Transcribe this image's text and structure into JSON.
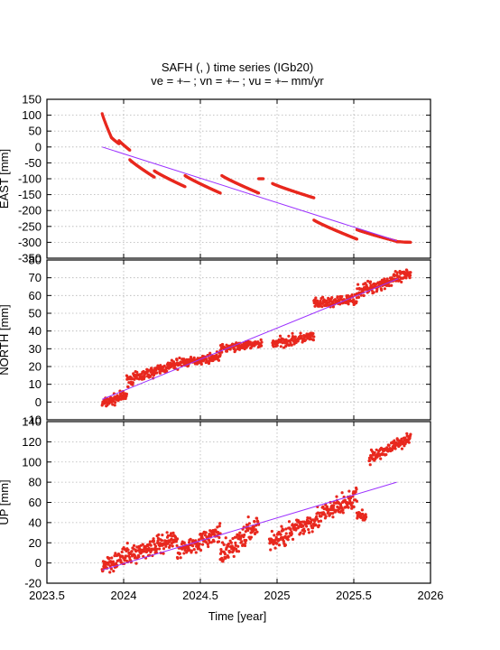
{
  "figure": {
    "title_line1": "SAFH (, ) time series (IGb20)",
    "title_line2": "ve =  +– ; vn =  +– ; vu =  +–  mm/yr"
  },
  "x_axis": {
    "label": "Time [year]",
    "range": [
      2023.5,
      2026
    ],
    "ticks": [
      2023.5,
      2024,
      2024.5,
      2025,
      2025.5,
      2026
    ],
    "tick_labels": [
      "2023.5",
      "2024",
      "2024.5",
      "2025",
      "2025.5",
      "2026"
    ]
  },
  "colors": {
    "points": "#e8281e",
    "fit": "#9b30ff",
    "grid": "#b4b4b4"
  },
  "chart_data": [
    {
      "type": "scatter",
      "panel": "east",
      "ylabel": "EAST [mm]",
      "ylim": [
        -350,
        150
      ],
      "yticks": [
        150,
        100,
        50,
        0,
        -50,
        -100,
        -150,
        -200,
        -250,
        -300,
        -350
      ],
      "grid": true,
      "fit_line": {
        "x": [
          2023.86,
          2025.78
        ],
        "y": [
          0,
          -295
        ]
      },
      "segments": [
        {
          "x0": 2023.86,
          "x1": 2023.92,
          "y0": 105,
          "y1": 30
        },
        {
          "x0": 2023.92,
          "x1": 2023.97,
          "y0": 30,
          "y1": 10
        },
        {
          "x0": 2023.97,
          "x1": 2024.04,
          "y0": 20,
          "y1": -10
        },
        {
          "x0": 2024.04,
          "x1": 2024.2,
          "y0": -40,
          "y1": -95
        },
        {
          "x0": 2024.2,
          "x1": 2024.4,
          "y0": -75,
          "y1": -125
        },
        {
          "x0": 2024.4,
          "x1": 2024.63,
          "y0": -90,
          "y1": -145
        },
        {
          "x0": 2024.64,
          "x1": 2024.88,
          "y0": -90,
          "y1": -145
        },
        {
          "x0": 2024.88,
          "x1": 2024.91,
          "y0": -100,
          "y1": -100
        },
        {
          "x0": 2024.97,
          "x1": 2025.24,
          "y0": -115,
          "y1": -160
        },
        {
          "x0": 2025.24,
          "x1": 2025.52,
          "y0": -230,
          "y1": -290
        },
        {
          "x0": 2025.52,
          "x1": 2025.78,
          "y0": -260,
          "y1": -297
        },
        {
          "x0": 2025.78,
          "x1": 2025.87,
          "y0": -298,
          "y1": -300
        }
      ]
    },
    {
      "type": "scatter",
      "panel": "north",
      "ylabel": "NORTH [mm]",
      "ylim": [
        -10,
        80
      ],
      "yticks": [
        80,
        70,
        60,
        50,
        40,
        30,
        20,
        10,
        0,
        -10
      ],
      "grid": true,
      "fit_line": {
        "x": [
          2023.86,
          2025.79
        ],
        "y": [
          1.5,
          69.5
        ]
      },
      "segments": [
        {
          "x0": 2023.86,
          "x1": 2024.02,
          "y0": -1,
          "y1": 4,
          "noise": 2.5
        },
        {
          "x0": 2024.02,
          "x1": 2024.4,
          "y0": 12,
          "y1": 23,
          "noise": 2.5
        },
        {
          "x0": 2024.4,
          "x1": 2024.63,
          "y0": 22,
          "y1": 26,
          "noise": 2
        },
        {
          "x0": 2024.63,
          "x1": 2024.9,
          "y0": 30,
          "y1": 33,
          "noise": 2
        },
        {
          "x0": 2024.97,
          "x1": 2025.24,
          "y0": 33,
          "y1": 37,
          "noise": 2.5
        },
        {
          "x0": 2025.24,
          "x1": 2025.52,
          "y0": 55,
          "y1": 58,
          "noise": 2.5
        },
        {
          "x0": 2025.52,
          "x1": 2025.87,
          "y0": 62,
          "y1": 72,
          "noise": 3
        }
      ]
    },
    {
      "type": "scatter",
      "panel": "up",
      "ylabel": "UP [mm]",
      "ylim": [
        -20,
        140
      ],
      "yticks": [
        140,
        120,
        100,
        80,
        60,
        40,
        20,
        0,
        -20
      ],
      "grid": true,
      "fit_line": {
        "x": [
          2023.86,
          2025.78
        ],
        "y": [
          -7,
          80
        ]
      },
      "segments": [
        {
          "x0": 2023.86,
          "x1": 2024.35,
          "y0": -2,
          "y1": 25,
          "noise": 8
        },
        {
          "x0": 2024.35,
          "x1": 2024.63,
          "y0": 12,
          "y1": 30,
          "noise": 7
        },
        {
          "x0": 2024.63,
          "x1": 2024.88,
          "y0": 5,
          "y1": 40,
          "noise": 10
        },
        {
          "x0": 2024.95,
          "x1": 2025.52,
          "y0": 20,
          "y1": 65,
          "noise": 9
        },
        {
          "x0": 2025.52,
          "x1": 2025.58,
          "y0": 48,
          "y1": 45,
          "noise": 4
        },
        {
          "x0": 2025.6,
          "x1": 2025.87,
          "y0": 103,
          "y1": 125,
          "noise": 5
        }
      ]
    }
  ]
}
